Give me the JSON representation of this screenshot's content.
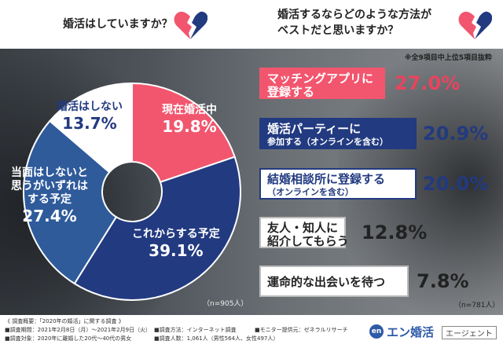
{
  "left_question": "婚活はしていますか？",
  "right_question_line1": "婚活するならどのような方法が",
  "right_question_line2": "ベストだと思いますか？",
  "note": "※全9項目中上位5項目抜粋",
  "pie_sample": "（n=905人）",
  "rank_sample": "（n=781人）",
  "colors": {
    "pink": "#f2566e",
    "navy": "#223a80",
    "blue": "#2f5b9b",
    "white": "#ffffff",
    "pink_text": "#e8445e"
  },
  "chart_data": [
    {
      "type": "pie",
      "categories": [
        "現在婚活中",
        "これからする予定",
        "当面はしないと思うがいずれはする予定",
        "婚活はしない"
      ],
      "values": [
        19.8,
        39.1,
        27.4,
        13.7
      ],
      "labels": [
        {
          "lines": [
            "現在婚活中"
          ],
          "value": "19.8%"
        },
        {
          "lines": [
            "これからする予定"
          ],
          "value": "39.1%"
        },
        {
          "lines": [
            "当面はしないと",
            "思うがいずれは",
            "する予定"
          ],
          "value": "27.4%"
        },
        {
          "lines": [
            "婚活はしない"
          ],
          "value": "13.7%"
        }
      ]
    },
    {
      "type": "bar",
      "categories": [
        "マッチングアプリに登録する",
        "婚活パーティーに参加する（オンラインを含む）",
        "結婚相談所に登録する（オンラインを含む）",
        "友人・知人に紹介してもらう",
        "運命的な出会いを待つ"
      ],
      "values": [
        27.0,
        20.9,
        20.0,
        12.8,
        7.8
      ],
      "rows": [
        {
          "line1": "マッチングアプリに",
          "line2": "登録する",
          "value": "27.0%"
        },
        {
          "line1": "婚活パーティーに",
          "line2": "参加する（オンラインを含む）",
          "value": "20.9%"
        },
        {
          "line1": "結婚相談所に登録する",
          "line2": "（オンラインを含む）",
          "value": "20.0%"
        },
        {
          "line1": "友人・知人に",
          "line2": "紹介してもらう",
          "value": "12.8%"
        },
        {
          "line1": "運命的な出会いを待つ",
          "line2": "",
          "value": "7.8%"
        }
      ]
    }
  ],
  "footer": {
    "survey": "《 調査概要：「2020年の婚活」に関する調査 》",
    "period": "■調査期間：2021年2月8日（月）〜2021年2月9日（火）",
    "target": "■調査対象：2020年に離婚した20代〜40代の男女",
    "method": "■調査方法：インターネット調査",
    "monitor": "■モニター提供元：ゼネラルリサーチ",
    "count": "■調査人数：1,061人（男性564人、女性497人）"
  },
  "logo": {
    "mark": "en",
    "name": "エン婚活",
    "sub": "エージェント"
  }
}
